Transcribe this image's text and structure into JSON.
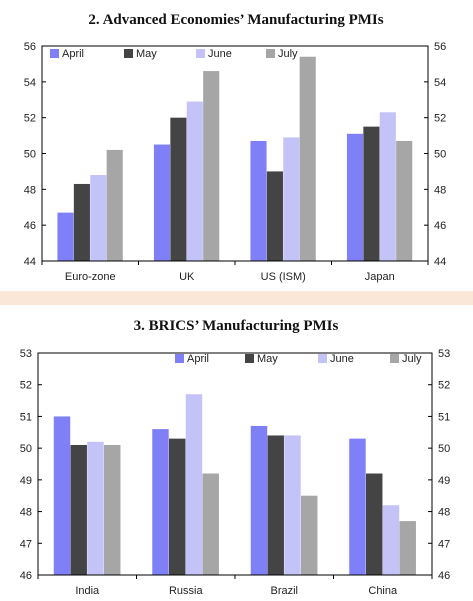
{
  "colors": {
    "April": "#7f7ff7",
    "May": "#444444",
    "June": "#c3c3f7",
    "July": "#a6a6a6",
    "separator": "#fbe7d8"
  },
  "chart_data": [
    {
      "type": "bar",
      "title": "2. Advanced Economies’ Manufacturing PMIs",
      "categories": [
        "Euro-zone",
        "UK",
        "US (ISM)",
        "Japan"
      ],
      "ylim": [
        44,
        56
      ],
      "yticks": [
        44,
        46,
        48,
        50,
        52,
        54,
        56
      ],
      "legend": "top",
      "grid": false,
      "series": [
        {
          "name": "April",
          "values": [
            46.7,
            50.5,
            50.7,
            51.1
          ]
        },
        {
          "name": "May",
          "values": [
            48.3,
            52.0,
            49.0,
            51.5
          ]
        },
        {
          "name": "June",
          "values": [
            48.8,
            52.9,
            50.9,
            52.3
          ]
        },
        {
          "name": "July",
          "values": [
            50.2,
            54.6,
            55.4,
            50.7
          ]
        }
      ]
    },
    {
      "type": "bar",
      "title": "3. BRICS’ Manufacturing PMIs",
      "categories": [
        "India",
        "Russia",
        "Brazil",
        "China"
      ],
      "ylim": [
        46,
        53
      ],
      "yticks": [
        46,
        47,
        48,
        49,
        50,
        51,
        52,
        53
      ],
      "legend": "top",
      "grid": false,
      "series": [
        {
          "name": "April",
          "values": [
            51.0,
            50.6,
            50.7,
            50.3
          ]
        },
        {
          "name": "May",
          "values": [
            50.1,
            50.3,
            50.4,
            49.2
          ]
        },
        {
          "name": "June",
          "values": [
            50.2,
            51.7,
            50.4,
            48.2
          ]
        },
        {
          "name": "July",
          "values": [
            50.1,
            49.2,
            48.5,
            47.7
          ]
        }
      ]
    }
  ]
}
